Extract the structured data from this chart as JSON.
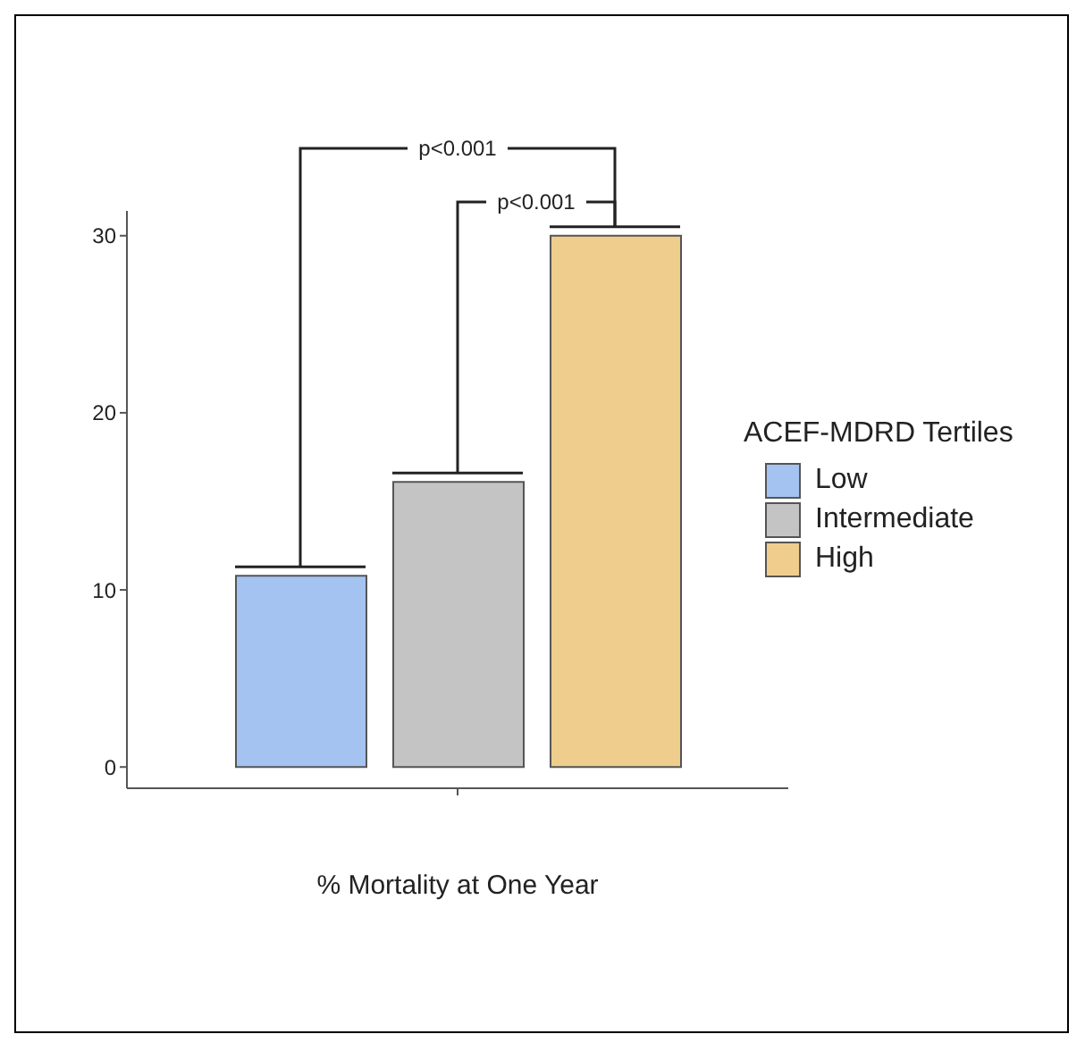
{
  "chart_data": {
    "type": "bar",
    "xlabel": "% Mortality at One Year",
    "legend_title": "ACEF-MDRD Tertiles",
    "categories": [
      null
    ],
    "series": [
      {
        "name": "Low",
        "color": "#a4c3f0",
        "values": [
          10.8
        ]
      },
      {
        "name": "Intermediate",
        "color": "#c4c4c4",
        "values": [
          16.1
        ]
      },
      {
        "name": "High",
        "color": "#efcd8d",
        "values": [
          30.0
        ]
      }
    ],
    "ylim": [
      -1.2,
      31.4
    ],
    "yticks": [
      0,
      10,
      20,
      30
    ],
    "legend": "right",
    "annotations": [
      "p<0.001",
      "p<0.001"
    ]
  }
}
